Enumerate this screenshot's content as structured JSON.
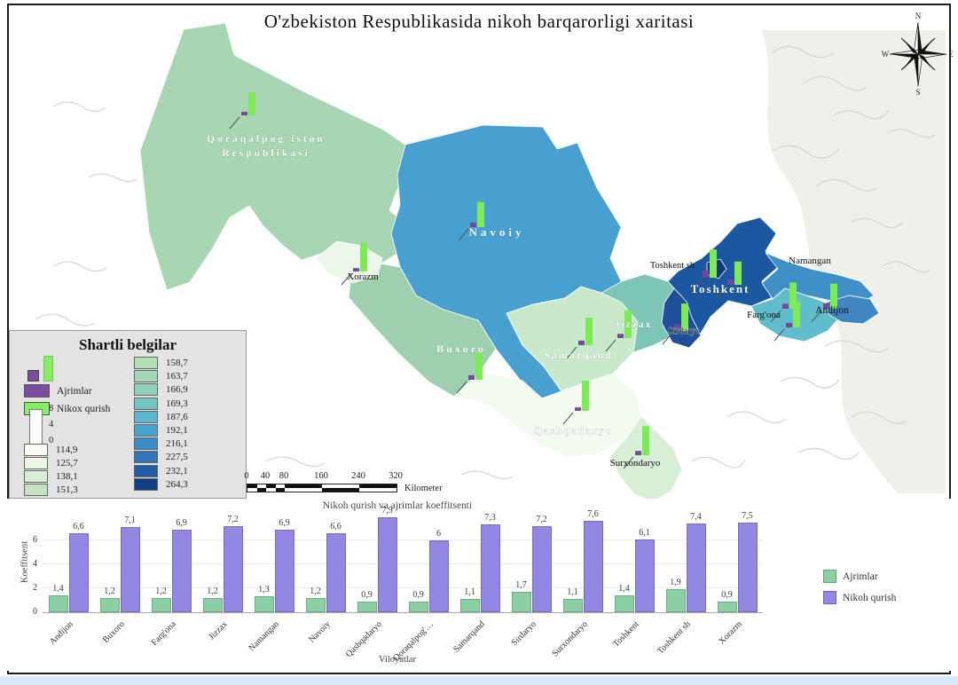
{
  "title": "O'zbekiston Respublikasida nikoh barqarorligi xaritasi",
  "compass": {
    "n": "N",
    "e": "E",
    "s": "S",
    "w": "W"
  },
  "colors": {
    "map_symbol_green": "#7deb55",
    "map_symbol_purple": "#74489c",
    "chart_green": "#8bd0a5",
    "chart_purple": "#9287e2"
  },
  "map": {
    "regions": [
      {
        "id": "qoraqalpogiston",
        "label": "Qoraqalpog'iston",
        "label2": "Respublikasi",
        "fill": "#a9d6b2",
        "ajrim": 0.9,
        "nikoh": 6.0
      },
      {
        "id": "xorazm",
        "label": "Xorazm",
        "fill": "#ecf7ec",
        "ajrim": 0.9,
        "nikoh": 7.5
      },
      {
        "id": "navoiy",
        "label": "Navoiy",
        "fill": "#48a0d0",
        "ajrim": 1.2,
        "nikoh": 6.6
      },
      {
        "id": "buxoro",
        "label": "Buxoro",
        "fill": "#9cd0ae",
        "ajrim": 1.2,
        "nikoh": 7.1
      },
      {
        "id": "samarqand",
        "label": "Samarqand",
        "fill": "#c8e9ca",
        "ajrim": 1.1,
        "nikoh": 7.3
      },
      {
        "id": "qashqadaryo",
        "label": "Qashqadaryo",
        "fill": "#f3faef",
        "ajrim": 0.9,
        "nikoh": 7.9
      },
      {
        "id": "surxondaryo",
        "label": "Surxondaryo",
        "fill": "#d7efd7",
        "ajrim": 1.1,
        "nikoh": 7.6
      },
      {
        "id": "jizzax",
        "label": "Jizzax",
        "fill": "#7dc6b5",
        "ajrim": 1.2,
        "nikoh": 7.2
      },
      {
        "id": "sirdaryo",
        "label": "Sirdaryo",
        "fill": "#1e4f9b",
        "ajrim": 1.7,
        "nikoh": 7.2
      },
      {
        "id": "toshkent",
        "label": "Toshkent",
        "fill": "#1c57a2",
        "ajrim": 1.4,
        "nikoh": 6.1
      },
      {
        "id": "toshkent_sh",
        "label": "Toshkent sh",
        "fill": "#0f3a77",
        "ajrim": 1.9,
        "nikoh": 7.4
      },
      {
        "id": "namangan",
        "label": "Namangan",
        "fill": "#3e90c7",
        "ajrim": 1.3,
        "nikoh": 6.9
      },
      {
        "id": "fargona",
        "label": "Farg'ona",
        "fill": "#60bdcb",
        "ajrim": 1.2,
        "nikoh": 6.9
      },
      {
        "id": "andijon",
        "label": "Andijon",
        "fill": "#3f87c1",
        "ajrim": 1.4,
        "nikoh": 6.6
      }
    ]
  },
  "legend": {
    "title": "Shartli belgilar",
    "ajrimlar_label": "Ajrimlar",
    "nikox_label": "Nikox qurish",
    "ajrimlar_color": "#7a4d9e",
    "nikox_color": "#84ef62",
    "bar_scale_ticks": [
      "8",
      "4",
      "0"
    ],
    "classes_left": [
      {
        "value": "114,9",
        "color": "#f9fcf6"
      },
      {
        "value": "125,7",
        "color": "#eaf6e6"
      },
      {
        "value": "138,1",
        "color": "#d8efd5"
      },
      {
        "value": "151,3",
        "color": "#c2e5c0"
      }
    ],
    "classes_right": [
      {
        "value": "158,7",
        "color": "#b2dfb4"
      },
      {
        "value": "163,7",
        "color": "#a3d8b6"
      },
      {
        "value": "166,9",
        "color": "#8fd0b8"
      },
      {
        "value": "169,3",
        "color": "#74c5c0"
      },
      {
        "value": "187,6",
        "color": "#5cb6cf"
      },
      {
        "value": "192,1",
        "color": "#48a3d2"
      },
      {
        "value": "216,1",
        "color": "#3a8cc6"
      },
      {
        "value": "227,5",
        "color": "#2f76b7"
      },
      {
        "value": "232,1",
        "color": "#1f5ea6"
      },
      {
        "value": "264,3",
        "color": "#123f80"
      }
    ]
  },
  "scalebar": {
    "ticks": [
      "0",
      "40",
      "80",
      "160",
      "240",
      "320"
    ],
    "unit": "Kilometer"
  },
  "chart_data": {
    "type": "bar",
    "title": "Nikoh qurish va ajrimlar koeffitsenti",
    "xlabel": "Viloyatlar",
    "ylabel": "Koeffitsent",
    "yticks": [
      0,
      2,
      4,
      6
    ],
    "ylim": [
      0,
      8
    ],
    "grid": true,
    "legend_position": "right",
    "categories": [
      "Andijon",
      "Buxoro",
      "Farg'ona",
      "Jizzax",
      "Namangan",
      "Navoiy",
      "Qashqadaryo",
      "Qoraqalpog'…",
      "Samarqand",
      "Sirdaryo",
      "Surxondaryo",
      "Toshkent",
      "Toshkent sh",
      "Xorazm"
    ],
    "series": [
      {
        "name": "Ajrimlar",
        "color": "#8bd0a5",
        "values": [
          1.4,
          1.2,
          1.2,
          1.2,
          1.3,
          1.2,
          0.9,
          0.9,
          1.1,
          1.7,
          1.1,
          1.4,
          1.9,
          0.9
        ],
        "labels": [
          "1,4",
          "1,2",
          "1,2",
          "1,2",
          "1,3",
          "1,2",
          "0,9",
          "0,9",
          "1,1",
          "1,7",
          "1,1",
          "1,4",
          "1,9",
          "0,9"
        ]
      },
      {
        "name": "Nikoh qurish",
        "color": "#9287e2",
        "values": [
          6.6,
          7.1,
          6.9,
          7.2,
          6.9,
          6.6,
          7.9,
          6.0,
          7.3,
          7.2,
          7.6,
          6.1,
          7.4,
          7.5
        ],
        "labels": [
          "6,6",
          "7,1",
          "6,9",
          "7,2",
          "6,9",
          "6,6",
          "7,9",
          "6",
          "7,3",
          "7,2",
          "7,6",
          "6,1",
          "7,4",
          "7,5"
        ]
      }
    ]
  }
}
